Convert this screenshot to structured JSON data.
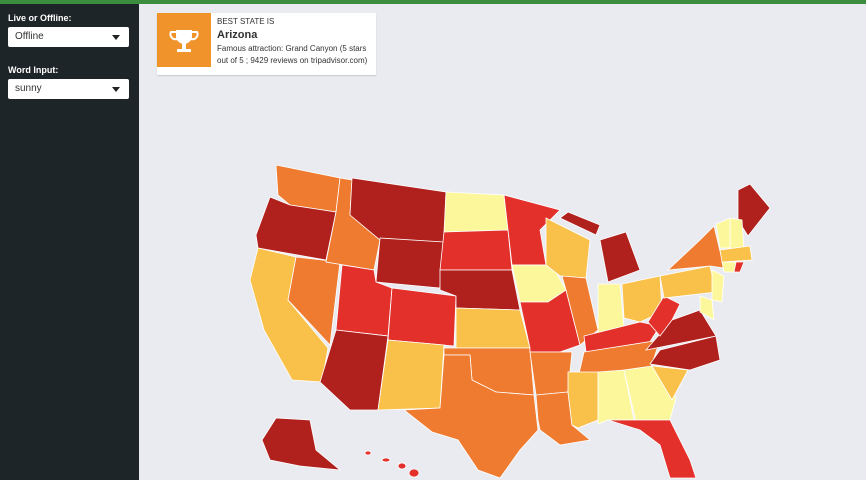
{
  "sidebar": {
    "mode_label": "Live or Offline:",
    "mode_value": "Offline",
    "word_label": "Word Input:",
    "word_value": "sunny"
  },
  "infobox": {
    "heading": "BEST STATE IS",
    "state": "Arizona",
    "description": "Famous attraction: Grand Canyon (5 stars out of 5 ; 9429 reviews on tripadvisor.com)"
  }
}
